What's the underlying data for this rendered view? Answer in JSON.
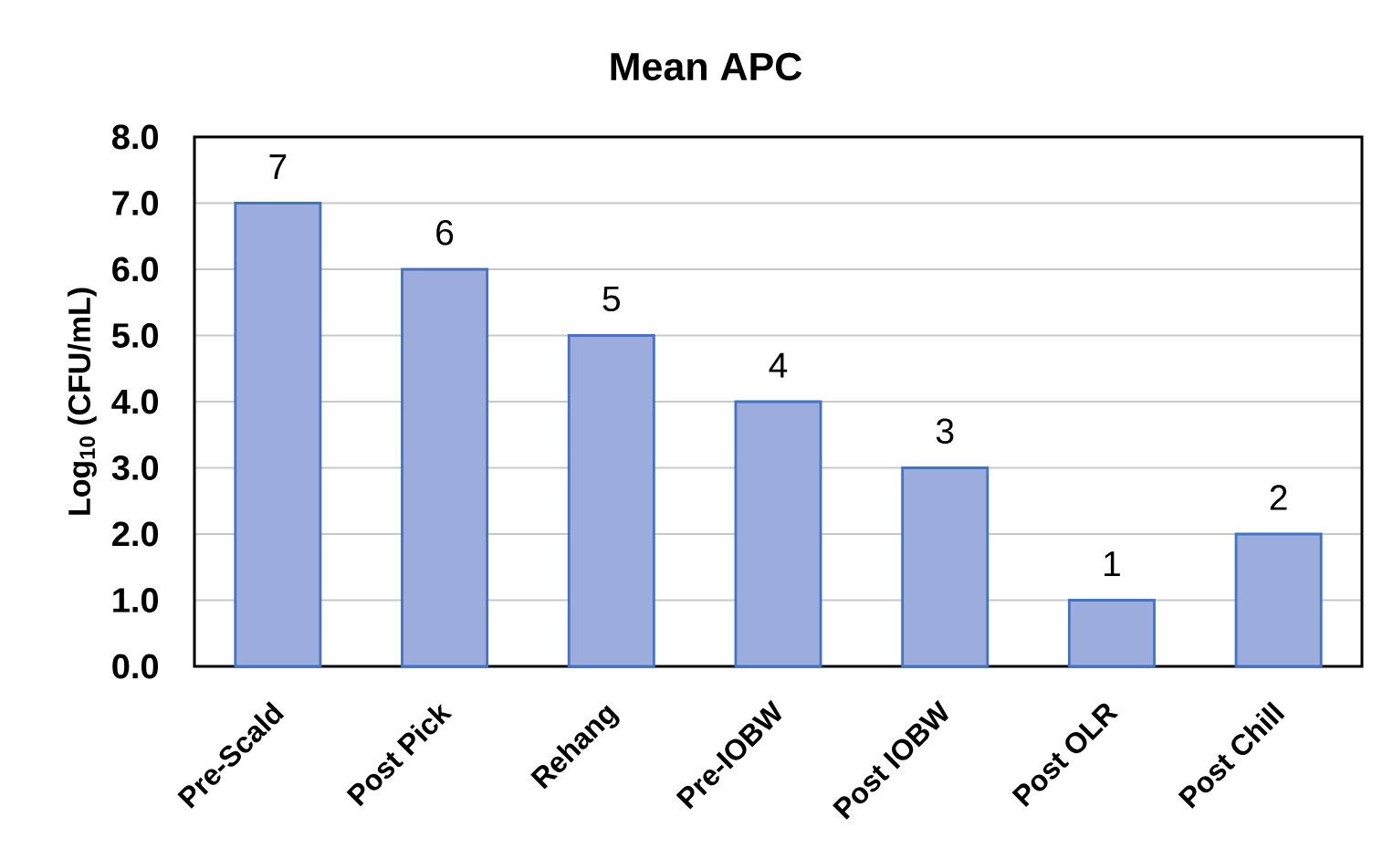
{
  "chart_data": {
    "type": "bar",
    "title": "Mean APC",
    "ylabel": "Log$_{10}$ (CFU/mL)",
    "categories": [
      "Pre-Scald",
      "Post Pick",
      "Rehang",
      "Pre-IOBW",
      "Post IOBW",
      "Post OLR",
      "Post Chill"
    ],
    "values": [
      7,
      6,
      5,
      4,
      3,
      1,
      2
    ],
    "color": "#9bacdd",
    "ylim": [
      0,
      8
    ],
    "yticks": [
      {
        "value": 0,
        "label": "0.0"
      },
      {
        "value": 1,
        "label": "1.0"
      },
      {
        "value": 2,
        "label": "2.0"
      },
      {
        "value": 3,
        "label": "3.0"
      },
      {
        "value": 4,
        "label": "4.0"
      },
      {
        "value": 5,
        "label": "5.0"
      },
      {
        "value": 6,
        "label": "6.0"
      },
      {
        "value": 7,
        "label": "7.0"
      },
      {
        "value": 8,
        "label": "8.0"
      }
    ],
    "grid": "y",
    "data_labels": true
  }
}
